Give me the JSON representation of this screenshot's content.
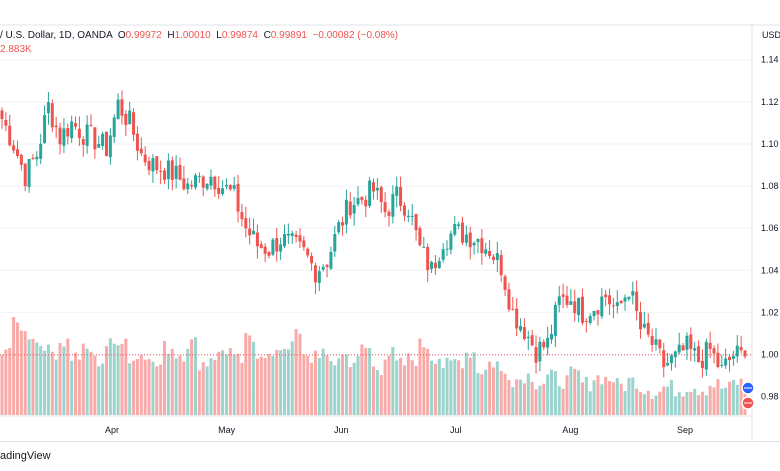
{
  "header": {
    "symbol": "/ U.S. Dollar, 1D, OANDA",
    "o_label": "O",
    "o_value": "0.99972",
    "h_label": "H",
    "h_value": "1.00010",
    "l_label": "L",
    "l_value": "0.99874",
    "c_label": "C",
    "c_value": "0.99891",
    "change": "−0.00082 (−0.08%)",
    "volume": "2.883K"
  },
  "footer": {
    "brand": "adingView"
  },
  "colors": {
    "up": "#26a69a",
    "down": "#ef5350",
    "up_vol": "#9bd3cd",
    "down_vol": "#f7aaa8",
    "grid": "#f0f3fa"
  },
  "chart_data": {
    "type": "candlestick",
    "currency_label": "USD",
    "y_ticks": [
      "1.14",
      "1.12",
      "1.10",
      "1.08",
      "1.06",
      "1.04",
      "1.02",
      "1.00",
      "0.98"
    ],
    "ylim": [
      0.976,
      1.147
    ],
    "x_ticks": [
      "Apr",
      "May",
      "Jun",
      "Jul",
      "Aug",
      "Sep"
    ],
    "current_price_line": 0.9998,
    "anchors": [
      1.112,
      1.1,
      1.085,
      1.095,
      1.118,
      1.103,
      1.11,
      1.105,
      1.102,
      1.098,
      1.119,
      1.11,
      1.095,
      1.09,
      1.088,
      1.085,
      1.08,
      1.083,
      1.085,
      1.08,
      1.075,
      1.06,
      1.052,
      1.05,
      1.055,
      1.052,
      1.048,
      1.04,
      1.045,
      1.06,
      1.072,
      1.074,
      1.078,
      1.068,
      1.075,
      1.07,
      1.05,
      1.04,
      1.055,
      1.058,
      1.057,
      1.055,
      1.05,
      1.042,
      1.02,
      1.012,
      1.002,
      1.005,
      1.025,
      1.027,
      1.02,
      1.023,
      1.028,
      1.02,
      1.032,
      1.012,
      1.005,
      0.995,
      0.998,
      1.003,
      0.997,
      1.002,
      0.992,
      1.0,
      0.999
    ],
    "volume_pattern": [
      0.75,
      1.0,
      0.9,
      0.8,
      0.7,
      0.82,
      0.65,
      0.72,
      0.6,
      0.78,
      0.85,
      0.62,
      0.7,
      0.55,
      0.75,
      0.68,
      0.8,
      0.58,
      0.66,
      0.72,
      0.6,
      0.83,
      0.7,
      0.64,
      0.76,
      0.88,
      0.62,
      0.7,
      0.58,
      0.66,
      0.6,
      0.74,
      0.52,
      0.68,
      0.56,
      0.62,
      0.78,
      0.65,
      0.55,
      0.6,
      0.7,
      0.5,
      0.58,
      0.46,
      0.4,
      0.44,
      0.36,
      0.42,
      0.38,
      0.45,
      0.35,
      0.42,
      0.4,
      0.33,
      0.38,
      0.3,
      0.26,
      0.31,
      0.28,
      0.32,
      0.29,
      0.34,
      0.3,
      0.36,
      0.32
    ],
    "volume_markers": [
      "flag-icon",
      "flag-icon"
    ]
  }
}
